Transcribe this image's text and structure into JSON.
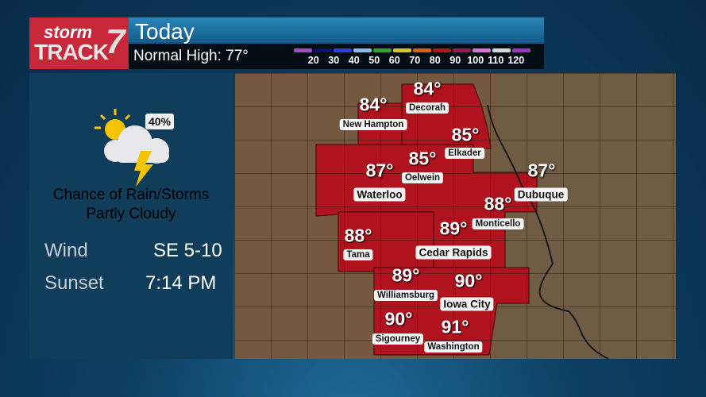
{
  "header": {
    "logo_text": "stormTRACK7",
    "title": "Today",
    "normal_high": "Normal High: 77°"
  },
  "legend": {
    "colors": [
      "#9a4fd0",
      "#0c0c7a",
      "#2a3ee8",
      "#8fbbe2",
      "#2aa52a",
      "#e0c020",
      "#d96010",
      "#b01818",
      "#9a1a50",
      "#e070d0",
      "#d8d8d8",
      "#a030d0"
    ],
    "labels": [
      "20",
      "30",
      "40",
      "50",
      "60",
      "70",
      "80",
      "90",
      "100",
      "110",
      "120"
    ]
  },
  "panel": {
    "icon": "partly-cloudy-thunderstorm-icon",
    "precip_chance": "40%",
    "condition_line1": "Chance of Rain/Storms",
    "condition_line2": "Partly Cloudy",
    "wind_label": "Wind",
    "wind_value": "SE 5-10",
    "sunset_label": "Sunset",
    "sunset_value": "7:14 PM"
  },
  "map": {
    "highlight_color": "#b0121e",
    "cities": [
      {
        "name": "Decorah",
        "temp": "84°"
      },
      {
        "name": "New Hampton",
        "temp": "84°"
      },
      {
        "name": "Elkader",
        "temp": "85°"
      },
      {
        "name": "Oelwein",
        "temp": "85°"
      },
      {
        "name": "Waterloo",
        "temp": "87°"
      },
      {
        "name": "Dubuque",
        "temp": "87°"
      },
      {
        "name": "Monticello",
        "temp": "88°"
      },
      {
        "name": "Tama",
        "temp": "88°"
      },
      {
        "name": "Cedar Rapids",
        "temp": "89°"
      },
      {
        "name": "Williamsburg",
        "temp": "89°"
      },
      {
        "name": "Iowa City",
        "temp": "90°"
      },
      {
        "name": "Sigourney",
        "temp": "90°"
      },
      {
        "name": "Washington",
        "temp": "91°"
      }
    ]
  }
}
